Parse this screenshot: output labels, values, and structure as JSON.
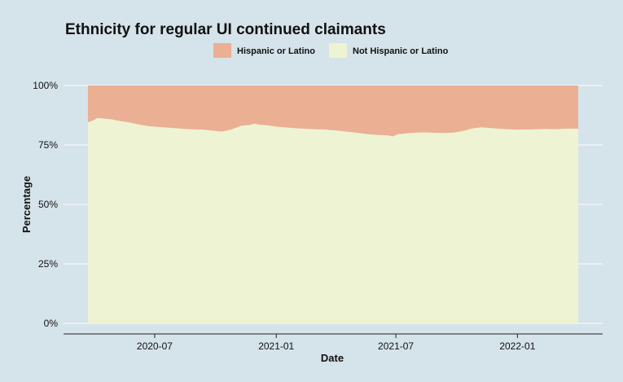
{
  "chart_data": {
    "type": "area",
    "stacked": "percent",
    "title": "Ethnicity for regular UI continued claimants",
    "xlabel": "Date",
    "ylabel": "Percentage",
    "ylim": [
      0,
      100
    ],
    "y_ticks": [
      0,
      25,
      50,
      75,
      100
    ],
    "y_tick_labels": [
      "0%",
      "25%",
      "50%",
      "75%",
      "100%"
    ],
    "xlim": [
      "2020-03-22",
      "2022-04-03"
    ],
    "x_ticks": [
      "2020-07-01",
      "2021-01-01",
      "2021-07-01",
      "2022-01-01"
    ],
    "x_tick_labels": [
      "2020-07",
      "2021-01",
      "2021-07",
      "2022-01"
    ],
    "legend_position": "top",
    "grid": true,
    "colors": {
      "background": "#d5e3ea",
      "panel": "#d5e3ea",
      "gridline": "#ffffff",
      "axis_line": "#222222",
      "text": "#111111"
    },
    "series": [
      {
        "name": "Hispanic or Latino",
        "color": "#ebaf94",
        "stack_position": "top"
      },
      {
        "name": "Not Hispanic or Latino",
        "color": "#eef4d3",
        "stack_position": "bottom",
        "x": [
          "2020-03-22",
          "2020-03-29",
          "2020-04-05",
          "2020-04-12",
          "2020-04-26",
          "2020-05-10",
          "2020-05-24",
          "2020-06-07",
          "2020-06-21",
          "2020-07-05",
          "2020-07-19",
          "2020-08-02",
          "2020-08-16",
          "2020-08-30",
          "2020-09-13",
          "2020-09-27",
          "2020-10-11",
          "2020-10-25",
          "2020-11-08",
          "2020-11-22",
          "2020-11-29",
          "2020-12-06",
          "2020-12-20",
          "2021-01-03",
          "2021-01-17",
          "2021-01-31",
          "2021-02-14",
          "2021-02-28",
          "2021-03-14",
          "2021-03-28",
          "2021-04-11",
          "2021-04-25",
          "2021-05-09",
          "2021-05-23",
          "2021-06-06",
          "2021-06-20",
          "2021-06-27",
          "2021-07-04",
          "2021-07-18",
          "2021-08-01",
          "2021-08-15",
          "2021-08-29",
          "2021-09-12",
          "2021-09-26",
          "2021-10-10",
          "2021-10-24",
          "2021-11-07",
          "2021-11-21",
          "2021-12-05",
          "2021-12-19",
          "2022-01-02",
          "2022-01-16",
          "2022-01-30",
          "2022-02-13",
          "2022-02-27",
          "2022-03-13",
          "2022-03-27",
          "2022-04-03"
        ],
        "values": [
          84.5,
          85.2,
          86.3,
          86.2,
          85.8,
          85.0,
          84.4,
          83.6,
          82.9,
          82.6,
          82.3,
          82.0,
          81.7,
          81.5,
          81.4,
          81.0,
          80.6,
          81.5,
          83.0,
          83.4,
          84.0,
          83.5,
          83.2,
          82.6,
          82.3,
          82.0,
          81.8,
          81.6,
          81.5,
          81.2,
          80.8,
          80.4,
          79.9,
          79.4,
          79.2,
          79.0,
          78.6,
          79.5,
          79.9,
          80.2,
          80.3,
          80.1,
          80.0,
          80.2,
          80.8,
          81.9,
          82.4,
          82.1,
          81.8,
          81.6,
          81.4,
          81.5,
          81.6,
          81.7,
          81.6,
          81.8,
          81.9,
          81.8
        ]
      }
    ]
  }
}
